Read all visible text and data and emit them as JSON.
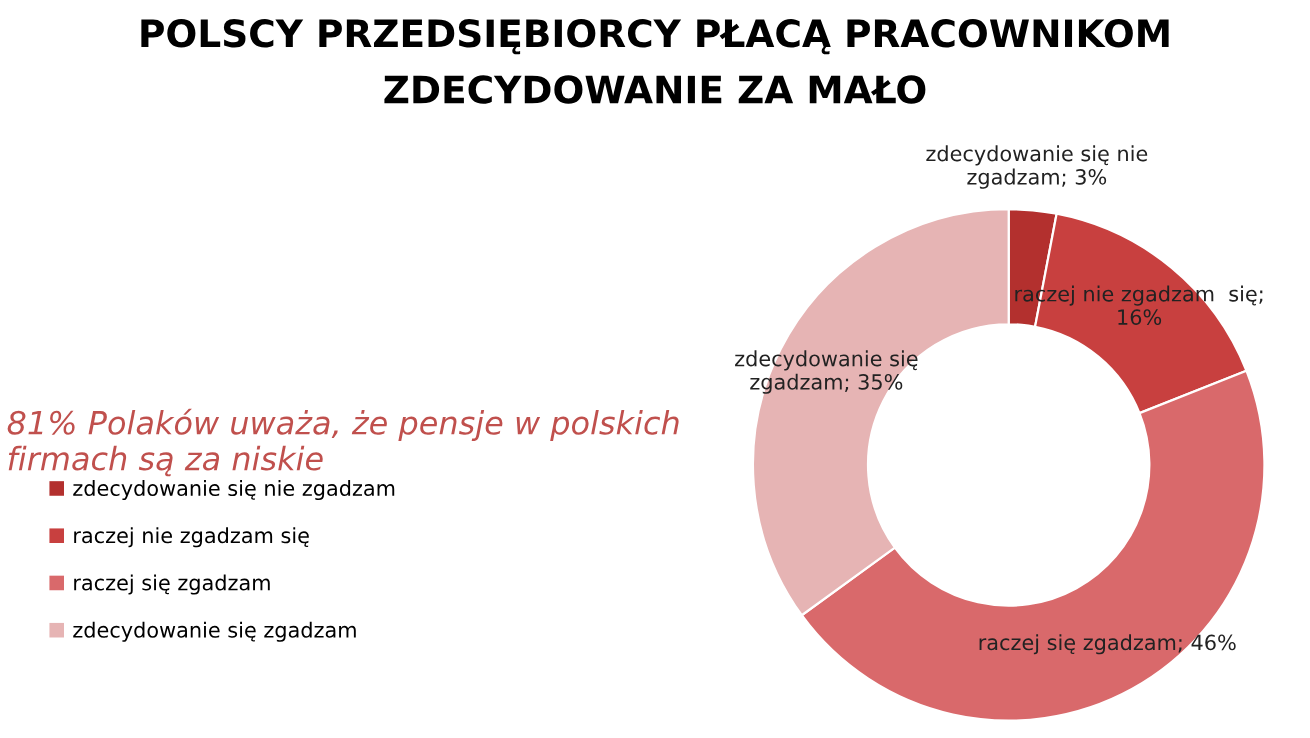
{
  "chart_data": {
    "type": "donut",
    "title": "POLSCY PRZEDSIĘBIORCY PŁACĄ PRACOWNIKOM\nZDECYDOWANIE ZA MAŁO",
    "annotations": [
      "81% Polaków uważa, że pensje w polskich\nfirmach są za niskie"
    ],
    "categories": [
      "zdecydowanie się nie zgadzam",
      "raczej nie zgadzam się",
      "raczej się zgadzam",
      "zdecydowanie się zgadzam"
    ],
    "values": [
      3,
      16,
      46,
      35
    ],
    "colors": [
      "#b3302e",
      "#c8403f",
      "#d9696b",
      "#e6b4b4"
    ],
    "value_labels": [
      "zdecydowanie się nie\nzgadzam; 3%",
      "raczej nie zgadzam  się;\n16%",
      "raczej się zgadzam; 46%",
      "zdecydowanie się\nzgadzam; 35%"
    ],
    "legend": "left"
  }
}
